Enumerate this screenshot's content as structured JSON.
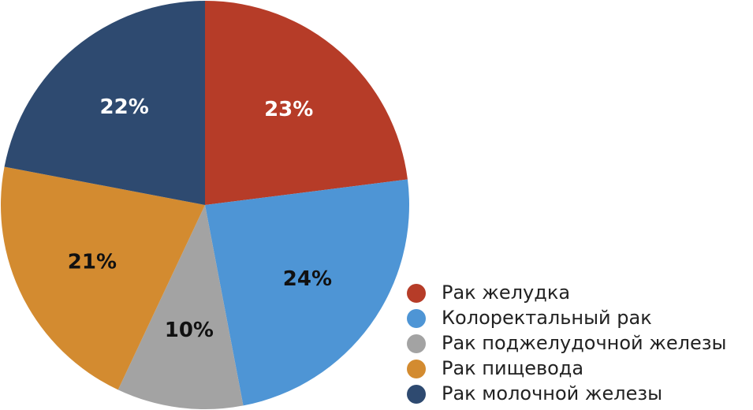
{
  "chart_data": {
    "type": "pie",
    "categories": [
      "Рак желудка",
      "Колоректальный рак",
      "Рак поджелудочной железы",
      "Рак пищевода",
      "Рак молочной железы"
    ],
    "values": [
      23,
      24,
      10,
      21,
      22
    ],
    "value_labels": [
      "23%",
      "24%",
      "10%",
      "21%",
      "22%"
    ],
    "colors": [
      "#b63c28",
      "#4e95d5",
      "#a3a3a3",
      "#d38b30",
      "#2e4a70"
    ],
    "legend": "bottom-right"
  }
}
